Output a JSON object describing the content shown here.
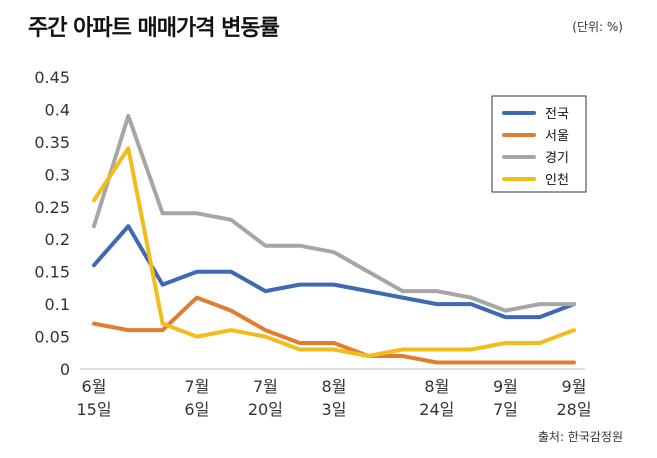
{
  "header": {
    "title": "주간 아파트 매매가격 변동률",
    "unit": "(단위: %)"
  },
  "footer": {
    "source": "출처: 한국감정원"
  },
  "colors": {
    "전국": "#3d6ab3",
    "서울": "#e07d32",
    "경기": "#a6a6a6",
    "인천": "#f2bd1c",
    "axis": "#bbbbbb"
  },
  "chart_data": {
    "type": "line",
    "title": "주간 아파트 매매가격 변동률",
    "unit": "(단위: %)",
    "ylim": [
      0,
      0.45
    ],
    "yticks": [
      {
        "value": 0,
        "label": "0"
      },
      {
        "value": 0.05,
        "label": "0.05"
      },
      {
        "value": 0.1,
        "label": "0.1"
      },
      {
        "value": 0.15,
        "label": "0.15"
      },
      {
        "value": 0.2,
        "label": "0.2"
      },
      {
        "value": 0.25,
        "label": "0.25"
      },
      {
        "value": 0.3,
        "label": "0.3"
      },
      {
        "value": 0.35,
        "label": "0.35"
      },
      {
        "value": 0.4,
        "label": "0.4"
      },
      {
        "value": 0.45,
        "label": "0.45"
      }
    ],
    "x_count": 15,
    "xtick_labels": [
      {
        "index": 0,
        "line1": "6월",
        "line2": "15일"
      },
      {
        "index": 3,
        "line1": "7월",
        "line2": "6일"
      },
      {
        "index": 5,
        "line1": "7월",
        "line2": "20일"
      },
      {
        "index": 7,
        "line1": "8월",
        "line2": "3일"
      },
      {
        "index": 10,
        "line1": "8월",
        "line2": "24일"
      },
      {
        "index": 12,
        "line1": "9월",
        "line2": "7일"
      },
      {
        "index": 14,
        "line1": "9월",
        "line2": "28일"
      }
    ],
    "series": [
      {
        "name": "전국",
        "values": [
          0.16,
          0.22,
          0.13,
          0.15,
          0.15,
          0.12,
          0.13,
          0.13,
          0.12,
          0.11,
          0.1,
          0.1,
          0.08,
          0.08,
          0.1
        ]
      },
      {
        "name": "서울",
        "values": [
          0.07,
          0.06,
          0.06,
          0.11,
          0.09,
          0.06,
          0.04,
          0.04,
          0.02,
          0.02,
          0.01,
          0.01,
          0.01,
          0.01,
          0.01
        ]
      },
      {
        "name": "경기",
        "values": [
          0.22,
          0.39,
          0.24,
          0.24,
          0.23,
          0.19,
          0.19,
          0.18,
          0.15,
          0.12,
          0.12,
          0.11,
          0.09,
          0.1,
          0.1
        ]
      },
      {
        "name": "인천",
        "values": [
          0.26,
          0.34,
          0.07,
          0.05,
          0.06,
          0.05,
          0.03,
          0.03,
          0.02,
          0.03,
          0.03,
          0.03,
          0.04,
          0.04,
          0.06
        ]
      }
    ],
    "legend": [
      "전국",
      "서울",
      "경기",
      "인천"
    ],
    "legend_position": "top-right",
    "grid": false
  }
}
